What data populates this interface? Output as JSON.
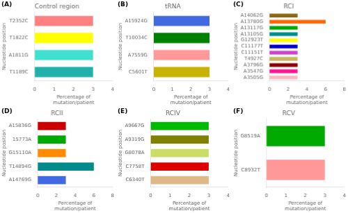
{
  "chart_data": [
    {
      "type": "bar",
      "orientation": "horizontal",
      "title": "Control region",
      "annotations": [
        "(A)"
      ],
      "xlabel": "Percentage of\nmutation/patient",
      "ylabel": "Nucleotide position",
      "categories": [
        "T2352C",
        "T1822C",
        "A1811G",
        "T1189C"
      ],
      "values": [
        3.0,
        3.0,
        3.0,
        3.0
      ],
      "colors": [
        "#FF8080",
        "#FFFF00",
        "#40E0D0",
        "#20B2AA"
      ],
      "xlim": [
        0,
        4
      ],
      "xticks": [
        0,
        1,
        2,
        3,
        4
      ],
      "grid": false
    },
    {
      "type": "bar",
      "orientation": "horizontal",
      "title": "tRNA",
      "annotations": [
        "(B)"
      ],
      "xlabel": "Percentage of\nmutation/patient",
      "ylabel": "Nucleotide position",
      "categories": [
        "A15924G",
        "T10034C",
        "A7559G",
        "C5601T"
      ],
      "values": [
        3.0,
        3.0,
        3.0,
        3.0
      ],
      "colors": [
        "#4169E1",
        "#008000",
        "#FF9999",
        "#C8B400"
      ],
      "xlim": [
        0,
        4
      ],
      "xticks": [
        0,
        1,
        2,
        3,
        4
      ],
      "grid": false
    },
    {
      "type": "bar",
      "orientation": "horizontal",
      "title": "RCI",
      "annotations": [
        "(C)"
      ],
      "xlabel": "Percentage of\nmutation/patient",
      "ylabel": "Nucleotide position",
      "categories": [
        "A14062G",
        "A13780G",
        "A13117G",
        "A13105G",
        "G12923T",
        "C11177T",
        "C11151T",
        "T4927C",
        "A3796G",
        "A3547G",
        "A3505G"
      ],
      "values": [
        3.0,
        6.0,
        3.0,
        3.0,
        3.0,
        3.0,
        3.0,
        3.0,
        3.0,
        3.0,
        3.0
      ],
      "colors": [
        "#8B6914",
        "#FF6600",
        "#00AA00",
        "#008B8B",
        "#FFFF00",
        "#0000CD",
        "#CC44CC",
        "#C8B560",
        "#8B0000",
        "#FF1493",
        "#FFB6C1"
      ],
      "xlim": [
        0,
        8
      ],
      "xticks": [
        0,
        2,
        4,
        6,
        8
      ],
      "grid": false
    },
    {
      "type": "bar",
      "orientation": "horizontal",
      "title": "RCII",
      "annotations": [
        "(D)"
      ],
      "xlabel": "Percentage of\nmutation/patient",
      "ylabel": "Nucleotide position",
      "categories": [
        "A15836G",
        "15773A",
        "G15110A",
        "T14894G",
        "A14769G"
      ],
      "values": [
        3.0,
        3.0,
        3.0,
        6.0,
        3.0
      ],
      "colors": [
        "#CC0000",
        "#00AA00",
        "#FF8C00",
        "#008B8B",
        "#4169E1"
      ],
      "xlim": [
        0,
        8
      ],
      "xticks": [
        0,
        2,
        4,
        6,
        8
      ],
      "grid": false
    },
    {
      "type": "bar",
      "orientation": "horizontal",
      "title": "RCIV",
      "annotations": [
        "(E)"
      ],
      "xlabel": "Percentage of\nmutation/patient",
      "ylabel": "Nucleotide position",
      "categories": [
        "A9667G",
        "A9319G",
        "G8078A",
        "C7758T",
        "C6340T"
      ],
      "values": [
        3.0,
        3.0,
        3.0,
        3.0,
        3.0
      ],
      "colors": [
        "#00BB00",
        "#808000",
        "#CCDD66",
        "#DD0000",
        "#DEB887"
      ],
      "xlim": [
        0,
        4
      ],
      "xticks": [
        0,
        1,
        2,
        3,
        4
      ],
      "grid": false
    },
    {
      "type": "bar",
      "orientation": "horizontal",
      "title": "RCV",
      "annotations": [
        "(F)"
      ],
      "xlabel": "Percentage of\nmutation/patient",
      "ylabel": "Nucleotide position",
      "categories": [
        "G8519A",
        "C8932T"
      ],
      "values": [
        3.0,
        3.0
      ],
      "colors": [
        "#00AA00",
        "#FF9999"
      ],
      "xlim": [
        0,
        4
      ],
      "xticks": [
        0,
        1,
        2,
        3,
        4
      ],
      "grid": false
    }
  ]
}
